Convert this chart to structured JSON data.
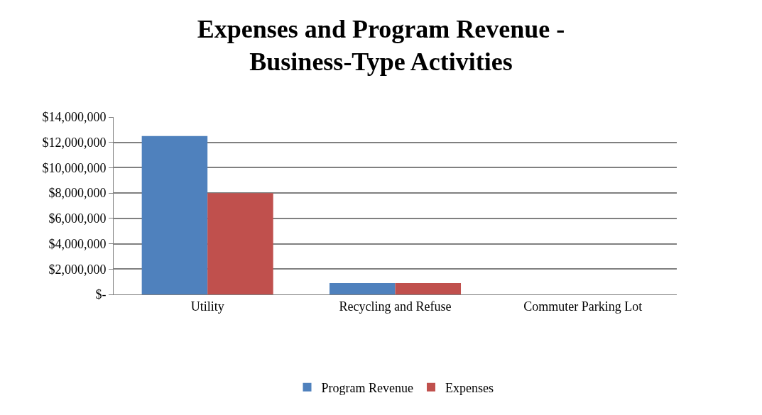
{
  "chart_data": {
    "type": "bar",
    "title": "Expenses and Program Revenue -\nBusiness-Type Activities",
    "categories": [
      "Utility",
      "Recycling and Refuse",
      "Commuter Parking Lot"
    ],
    "series": [
      {
        "name": "Program Revenue",
        "color": "#4f81bd",
        "values": [
          12500000,
          900000,
          0
        ]
      },
      {
        "name": "Expenses",
        "color": "#c0504d",
        "values": [
          8000000,
          900000,
          0
        ]
      }
    ],
    "ylim": [
      0,
      14000000
    ],
    "yticks": [
      {
        "value": 0,
        "label": "$-"
      },
      {
        "value": 2000000,
        "label": "$2,000,000"
      },
      {
        "value": 4000000,
        "label": "$4,000,000"
      },
      {
        "value": 6000000,
        "label": "$6,000,000"
      },
      {
        "value": 8000000,
        "label": "$8,000,000"
      },
      {
        "value": 10000000,
        "label": "$10,000,000"
      },
      {
        "value": 12000000,
        "label": "$12,000,000"
      },
      {
        "value": 14000000,
        "label": "$14,000,000"
      }
    ],
    "grid": "y",
    "legend": "bottom"
  }
}
